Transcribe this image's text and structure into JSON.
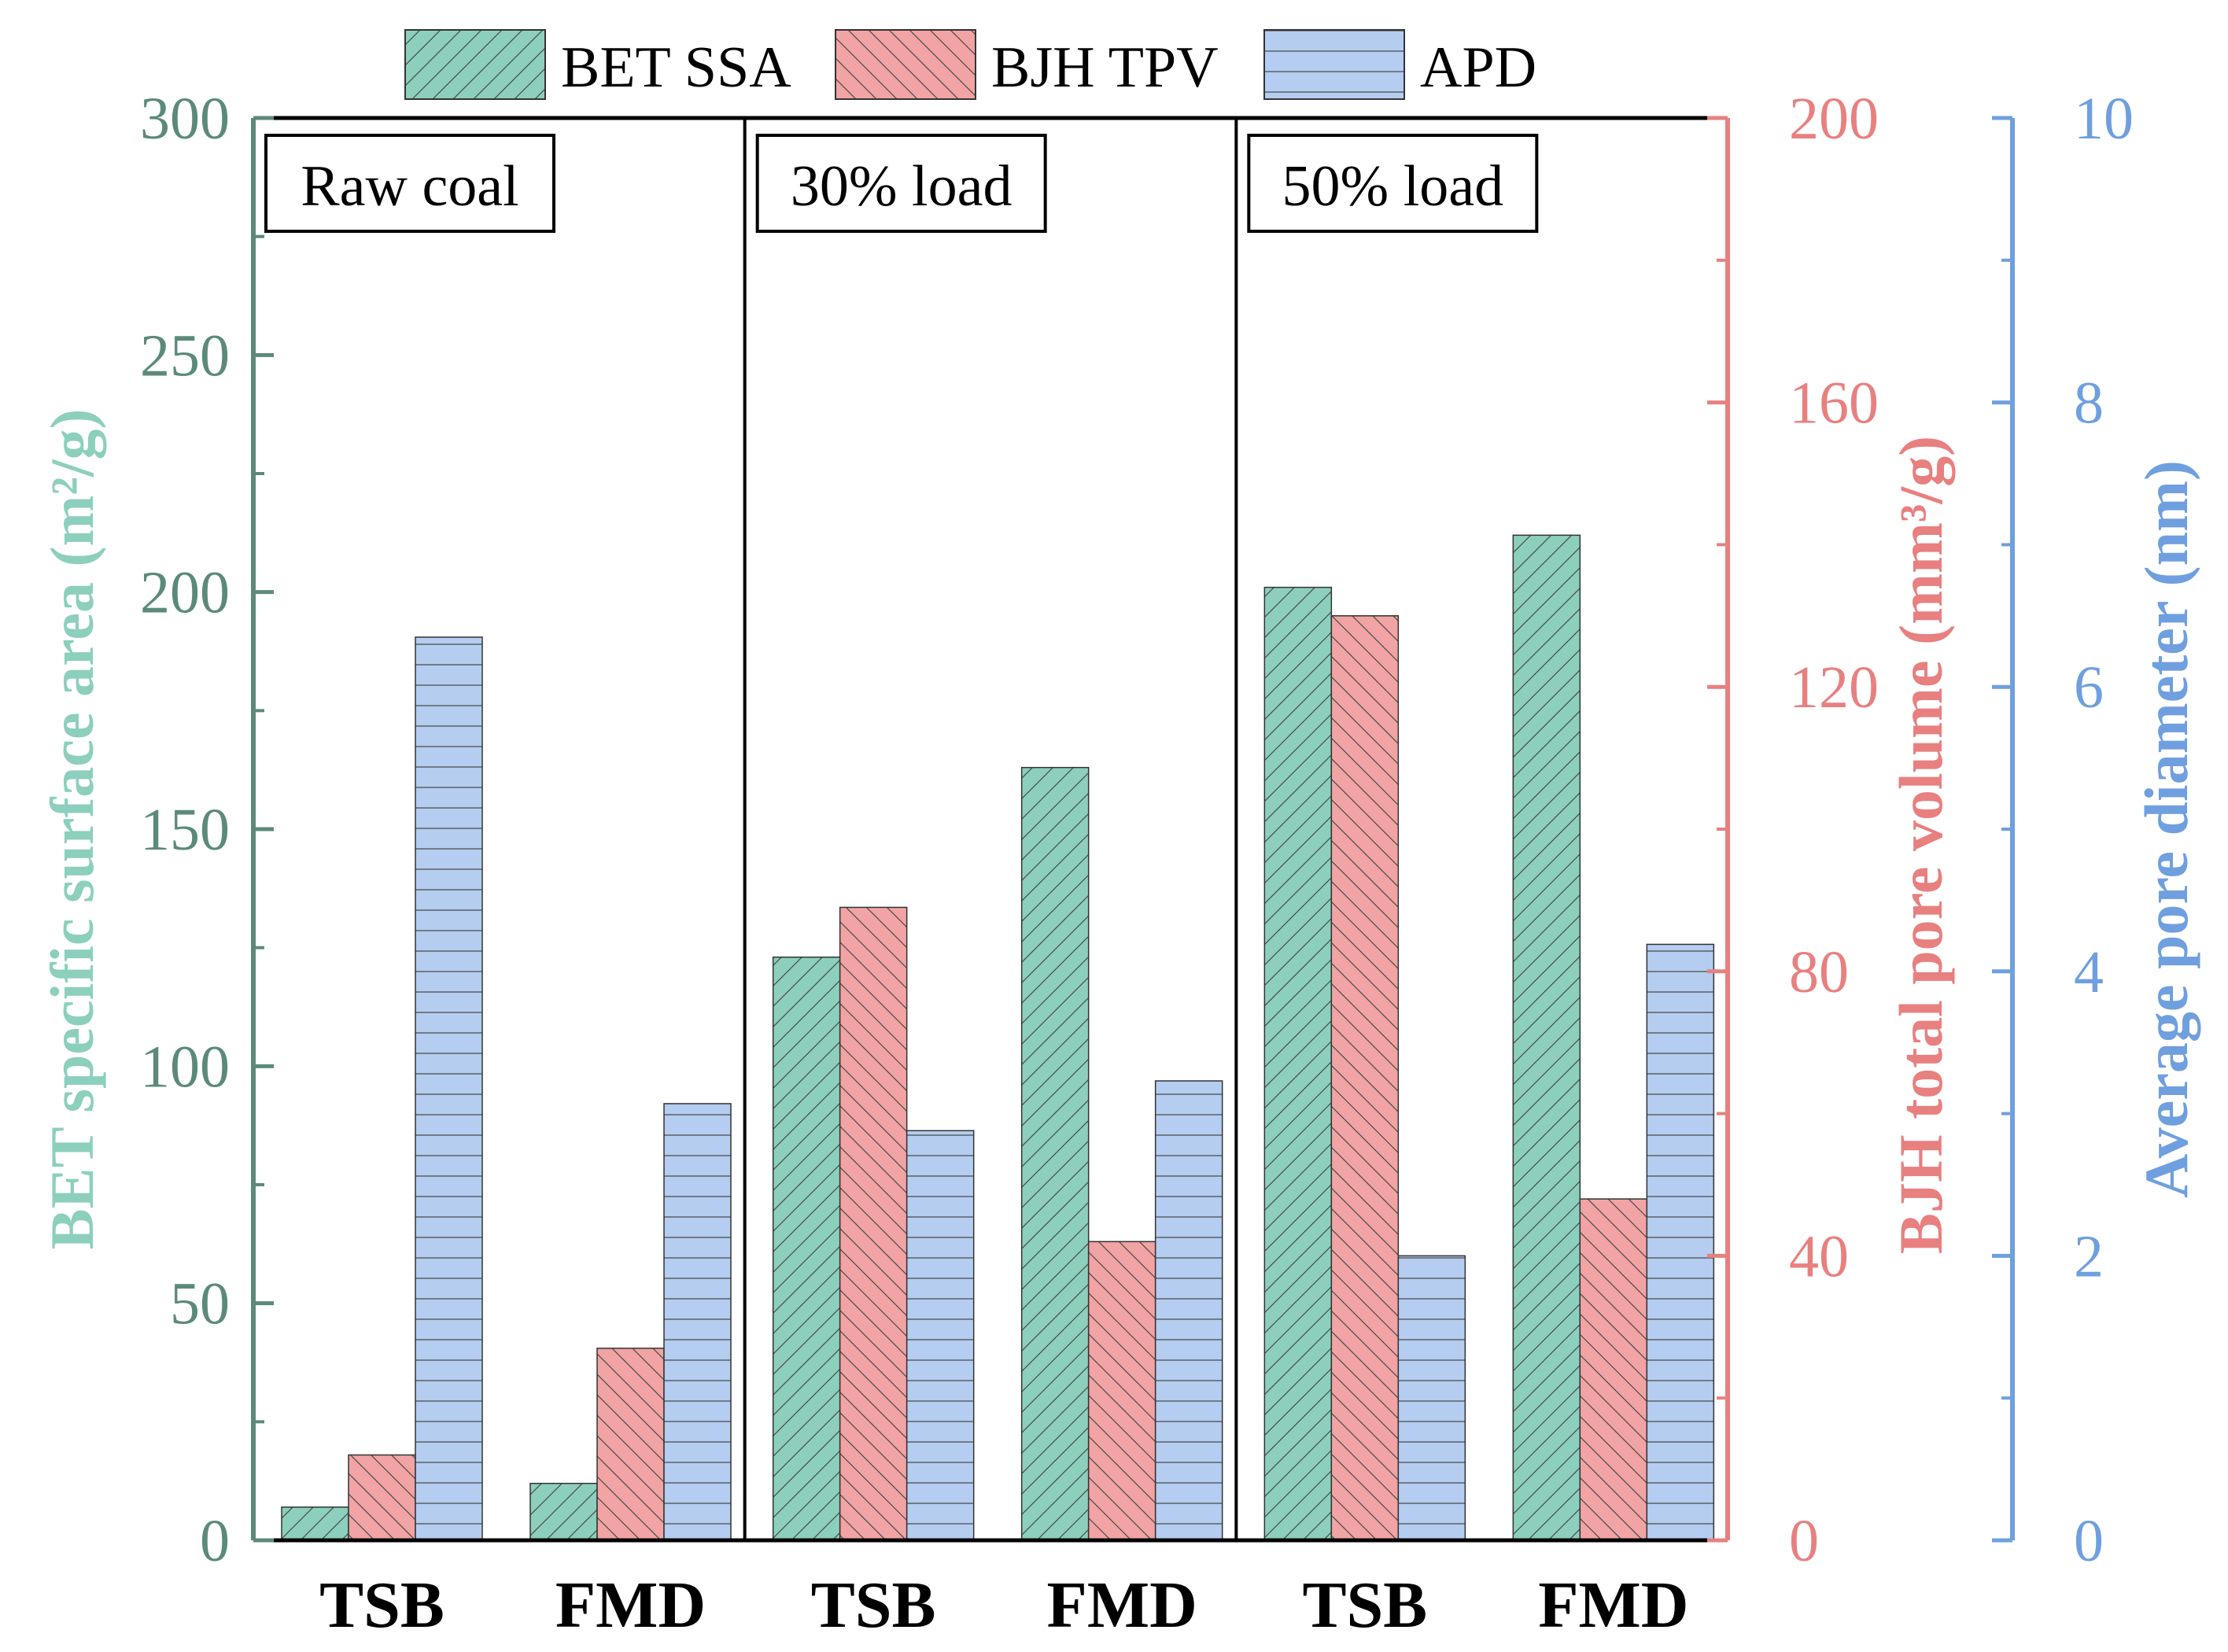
{
  "chart_data": {
    "type": "bar",
    "groups": [
      {
        "label": "Raw coal",
        "categories": [
          "TSB",
          "FMD"
        ]
      },
      {
        "label": "30% load",
        "categories": [
          "TSB",
          "FMD"
        ]
      },
      {
        "label": "50% load",
        "categories": [
          "TSB",
          "FMD"
        ]
      }
    ],
    "categories": [
      "TSB",
      "FMD",
      "TSB",
      "FMD",
      "TSB",
      "FMD"
    ],
    "series": [
      {
        "name": "BET SSA",
        "axis": "left",
        "color": "#8ccfbd",
        "pattern": "diagonal-up",
        "values": [
          7,
          12,
          123,
          163,
          201,
          212
        ]
      },
      {
        "name": "BJH TPV",
        "axis": "right1",
        "color": "#f2a3a3",
        "pattern": "diagonal-down",
        "values": [
          12,
          27,
          89,
          42,
          130,
          48
        ]
      },
      {
        "name": "APD",
        "axis": "right2",
        "color": "#b4cdf0",
        "pattern": "horizontal",
        "values": [
          6.35,
          3.07,
          2.88,
          3.23,
          2.0,
          4.19
        ]
      }
    ],
    "axes": {
      "left": {
        "label": "BET specific surface area (m2/g)",
        "ylim": [
          0,
          300
        ],
        "ticks": [
          "0",
          "50",
          "100",
          "150",
          "200",
          "250",
          "300"
        ],
        "color": "#5b8a7a",
        "title_color": "#8ccfbd"
      },
      "right1": {
        "label": "BJH total pore volume (mm3/g)",
        "ylim": [
          0,
          200
        ],
        "ticks": [
          "0",
          "40",
          "80",
          "120",
          "160",
          "200"
        ],
        "color": "#e88080"
      },
      "right2": {
        "label": "Average pore diameter (nm)",
        "ylim": [
          0,
          10
        ],
        "ticks": [
          "0",
          "2",
          "4",
          "6",
          "8",
          "10"
        ],
        "color": "#6f9fde"
      }
    },
    "legend": {
      "position": "top",
      "entries": [
        "BET SSA",
        "BJH TPV",
        "APD"
      ]
    }
  }
}
